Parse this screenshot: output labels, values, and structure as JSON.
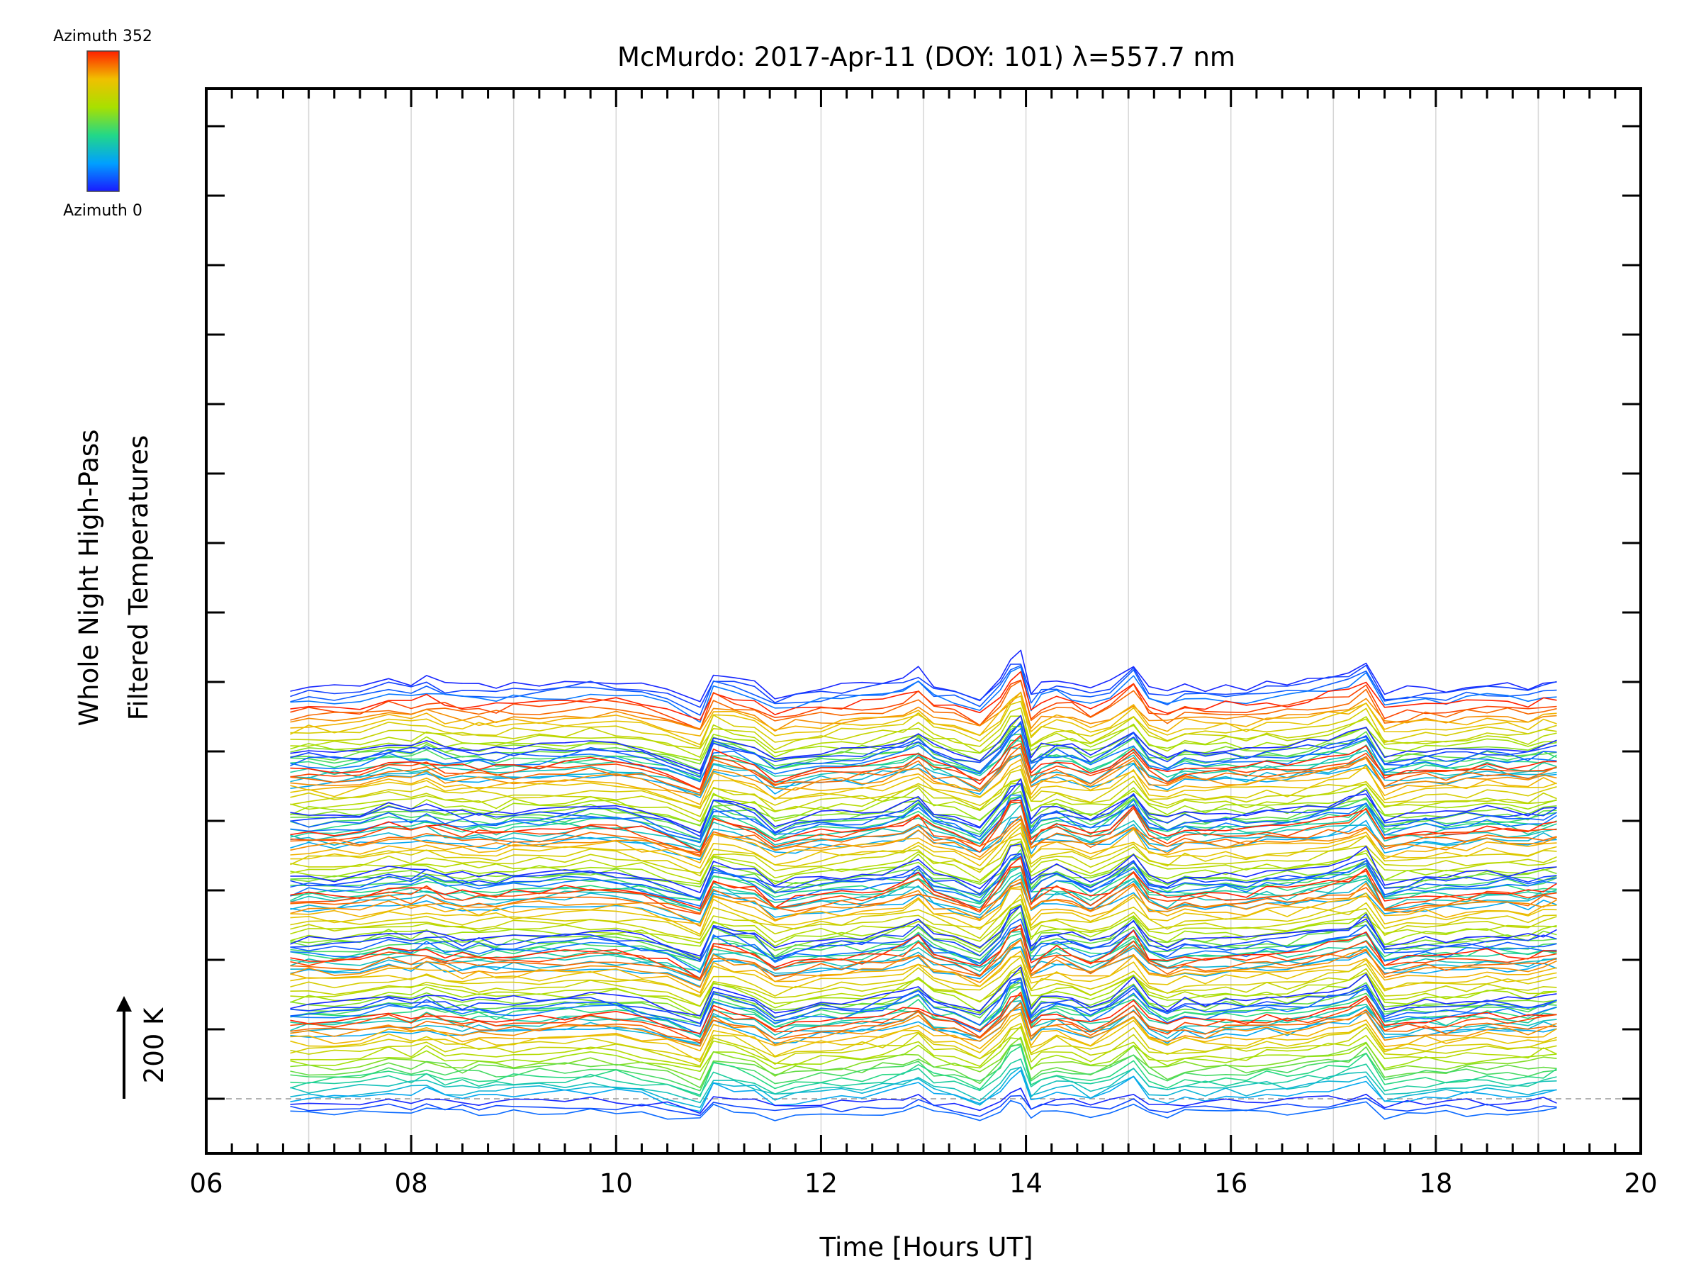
{
  "chart_data": {
    "type": "line",
    "title": "McMurdo: 2017-Apr-11 (DOY: 101) λ=557.7 nm",
    "xlabel": "Time [Hours UT]",
    "ylabel_lines": [
      "Whole Night High-Pass",
      "Filtered Temperatures"
    ],
    "xlim": [
      6,
      20
    ],
    "x_ticks": [
      "06",
      "08",
      "10",
      "12",
      "14",
      "16",
      "18",
      "20"
    ],
    "vertical_gridlines_hours": [
      7,
      8,
      9,
      10,
      11,
      12,
      13,
      14,
      15,
      16,
      17,
      18,
      19
    ],
    "data_x_range": [
      6.82,
      19.18
    ],
    "scale_bar": {
      "label": "200 K",
      "value_K": 200
    },
    "colorbar": {
      "top_label": "Azimuth 352",
      "bottom_label": "Azimuth 0",
      "azimuth_range": [
        0,
        352
      ],
      "colors": [
        "#1a1aff",
        "#00a0ff",
        "#22d888",
        "#a8e000",
        "#f0c000",
        "#ff2000"
      ]
    },
    "series_count": 132,
    "series_groups": 6,
    "series_per_group": 22,
    "sample_times_hours": [
      6.82,
      7.0,
      7.25,
      7.5,
      7.78,
      8.0,
      8.15,
      8.33,
      8.5,
      8.66,
      8.83,
      9.0,
      9.25,
      9.5,
      9.75,
      10.0,
      10.25,
      10.5,
      10.82,
      10.95,
      11.15,
      11.35,
      11.55,
      11.75,
      12.0,
      12.2,
      12.4,
      12.6,
      12.8,
      12.95,
      13.1,
      13.3,
      13.55,
      13.75,
      13.85,
      13.95,
      14.05,
      14.15,
      14.3,
      14.45,
      14.63,
      14.82,
      15.05,
      15.2,
      15.38,
      15.55,
      15.75,
      15.95,
      16.15,
      16.35,
      16.55,
      16.75,
      16.95,
      17.15,
      17.32,
      17.5,
      17.72,
      17.9,
      18.1,
      18.3,
      18.5,
      18.7,
      18.9,
      19.05,
      19.18
    ],
    "common_perturbation_K": [
      0,
      2,
      1,
      3,
      14,
      10,
      16,
      8,
      5,
      6,
      4,
      7,
      9,
      11,
      14,
      12,
      6,
      -4,
      -22,
      26,
      18,
      10,
      -12,
      -4,
      2,
      4,
      6,
      10,
      18,
      30,
      8,
      2,
      -14,
      18,
      44,
      52,
      -6,
      8,
      16,
      10,
      -2,
      10,
      36,
      4,
      -6,
      6,
      2,
      6,
      4,
      10,
      8,
      14,
      20,
      26,
      40,
      -6,
      0,
      4,
      2,
      6,
      10,
      8,
      6,
      12,
      14
    ],
    "group_offsets_K": [
      620,
      500,
      380,
      260,
      140,
      20
    ]
  }
}
